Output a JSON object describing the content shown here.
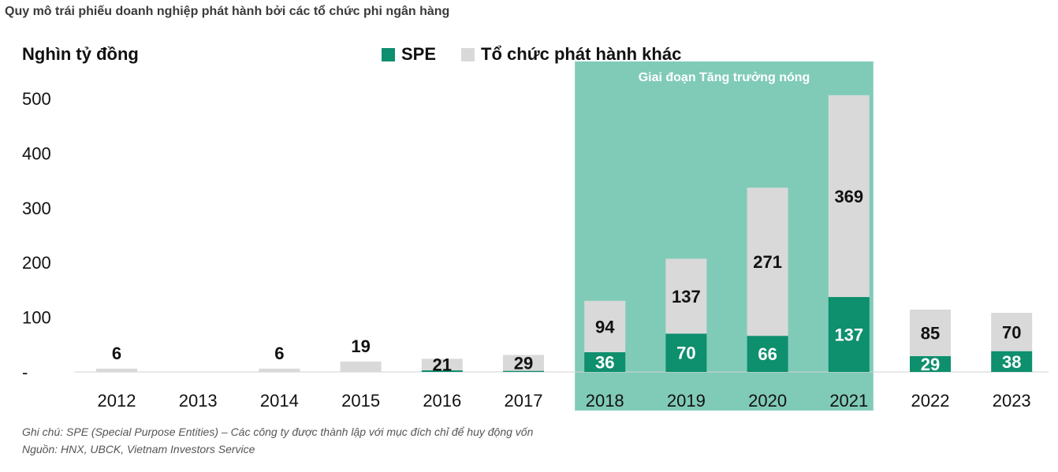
{
  "header": {
    "title": "Quy mô trái phiếu doanh nghiệp phát hành bởi các tổ chức phi ngân hàng"
  },
  "colors": {
    "spe": "#0e8f6e",
    "other": "#d9d9d9",
    "highlight": "#80cbb8"
  },
  "chart_data": {
    "type": "bar",
    "stacked": true,
    "unit_label": "Nghìn tỷ đồng",
    "categories": [
      "2012",
      "2013",
      "2014",
      "2015",
      "2016",
      "2017",
      "2018",
      "2019",
      "2020",
      "2021",
      "2022",
      "2023"
    ],
    "series": [
      {
        "name": "SPE",
        "values": [
          0,
          0,
          0,
          0,
          3,
          2,
          36,
          70,
          66,
          137,
          29,
          38
        ],
        "labels": [
          "",
          "",
          "",
          "",
          "",
          "",
          "36",
          "70",
          "66",
          "137",
          "29",
          "38"
        ]
      },
      {
        "name": "Tổ chức phát hành khác",
        "values": [
          6,
          0,
          6,
          19,
          21,
          29,
          94,
          137,
          271,
          369,
          85,
          70
        ],
        "labels": [
          "6",
          "",
          "6",
          "19",
          "21",
          "29",
          "94",
          "137",
          "271",
          "369",
          "85",
          "70"
        ]
      }
    ],
    "yticks": [
      "-",
      "100",
      "200",
      "300",
      "400",
      "500"
    ],
    "ylim": [
      0,
      500
    ],
    "highlight": {
      "label": "Giai đoạn Tăng trưởng nóng",
      "from": "2018",
      "to": "2021"
    }
  },
  "footer": {
    "note": "Ghi chú: SPE (Special Purpose Entities) – Các công ty được thành lập với mục đích chỉ để huy động vốn",
    "source": "Nguồn: HNX, UBCK, Vietnam Investors Service"
  }
}
